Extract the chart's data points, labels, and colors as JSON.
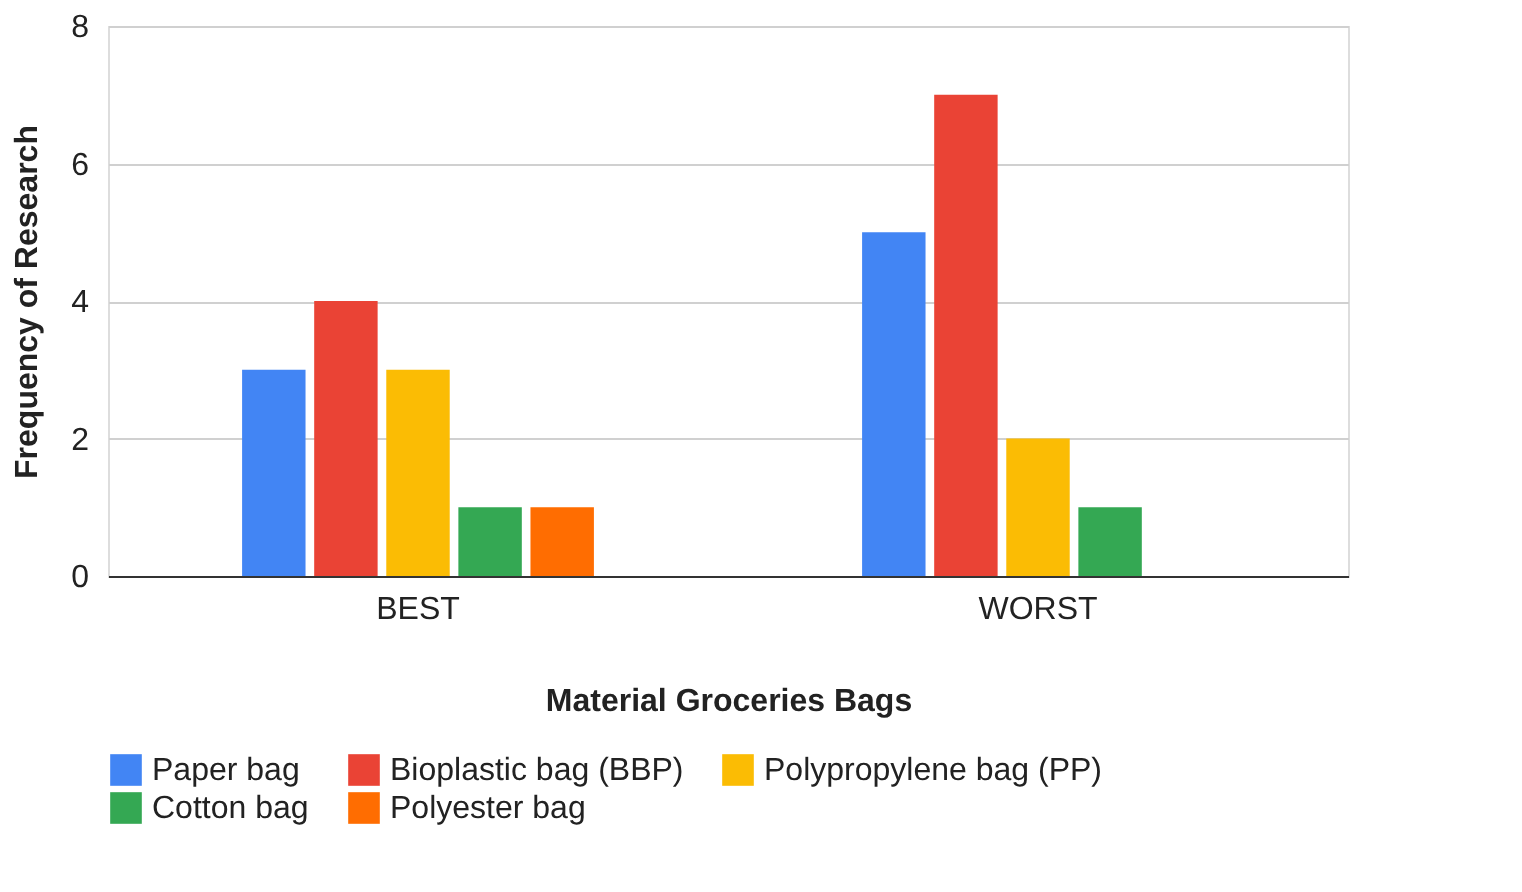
{
  "chart_data": {
    "type": "bar",
    "xlabel": "Material Groceries Bags",
    "ylabel": "Frequency of Research",
    "categories": [
      "BEST",
      "WORST"
    ],
    "series": [
      {
        "name": "Paper bag",
        "color": "#4285f4",
        "values": [
          3,
          5
        ]
      },
      {
        "name": "Bioplastic bag (BBP)",
        "color": "#ea4335",
        "values": [
          4,
          7
        ]
      },
      {
        "name": "Polypropylene bag (PP)",
        "color": "#fbbc04",
        "values": [
          3,
          2
        ]
      },
      {
        "name": "Cotton bag",
        "color": "#34a853",
        "values": [
          1,
          1
        ]
      },
      {
        "name": "Polyester bag",
        "color": "#ff6d01",
        "values": [
          1,
          null
        ]
      }
    ],
    "ylim": [
      0,
      8
    ],
    "yticks": [
      0,
      2,
      4,
      6,
      8
    ],
    "grid": "y",
    "legend": "bottom"
  }
}
